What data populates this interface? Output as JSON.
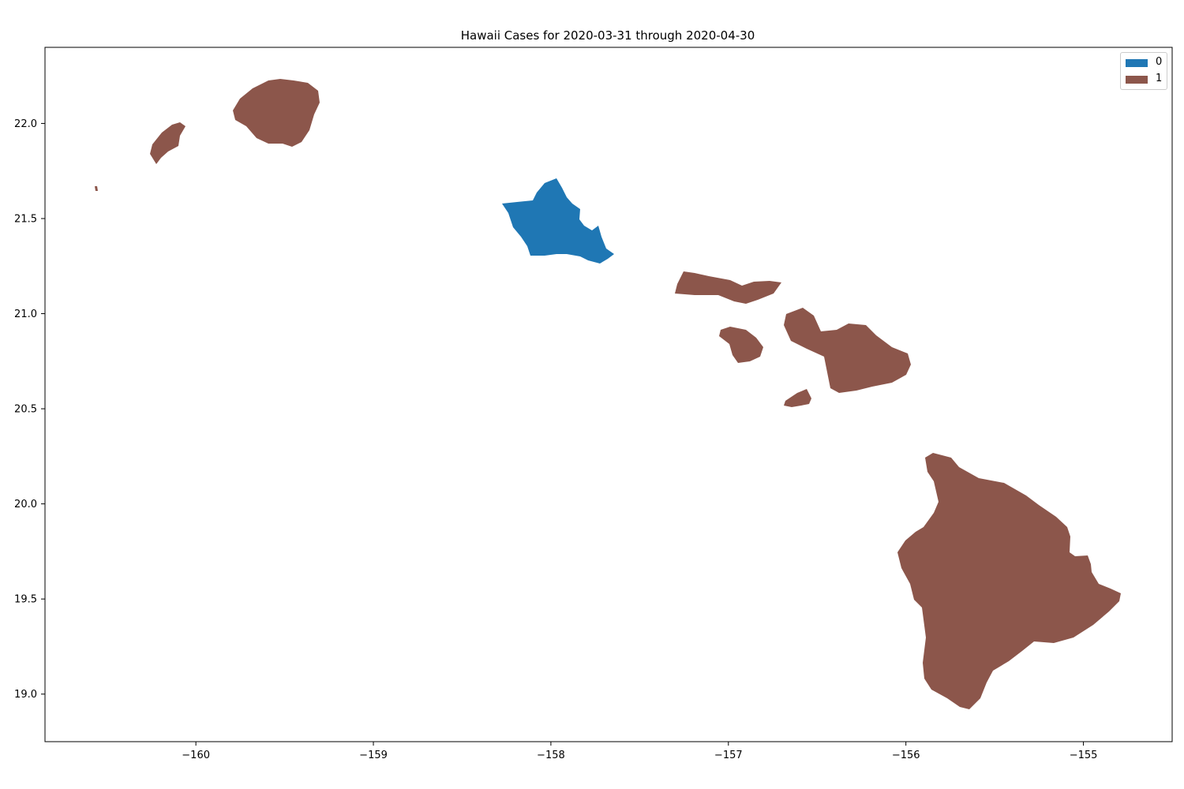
{
  "chart_data": {
    "type": "choropleth",
    "title": "Hawaii Cases for 2020-03-31 through 2020-04-30",
    "xlabel": "",
    "ylabel": "",
    "xlim": [
      -160.85,
      -154.5
    ],
    "ylim": [
      18.75,
      22.4
    ],
    "x_ticks": [
      -160,
      -159,
      -158,
      -157,
      -156,
      -155
    ],
    "y_ticks": [
      19.0,
      19.5,
      20.0,
      20.5,
      21.0,
      21.5,
      22.0
    ],
    "x_tick_labels": [
      "−160",
      "−159",
      "−158",
      "−157",
      "−156",
      "−155"
    ],
    "y_tick_labels": [
      "19.0",
      "19.5",
      "20.0",
      "20.5",
      "21.0",
      "21.5",
      "22.0"
    ],
    "grid": false,
    "legend": {
      "placement": "top-right",
      "entries": [
        {
          "label": "0",
          "color": "#1f77b4"
        },
        {
          "label": "1",
          "color": "#8c564b"
        }
      ]
    },
    "regions": [
      {
        "island": "Niihau",
        "class": "1"
      },
      {
        "island": "Kauai",
        "class": "1"
      },
      {
        "island": "Oahu",
        "class": "0"
      },
      {
        "island": "Molokai",
        "class": "1"
      },
      {
        "island": "Lanai",
        "class": "1"
      },
      {
        "island": "Maui",
        "class": "1"
      },
      {
        "island": "Kahoolawe",
        "class": "1"
      },
      {
        "island": "Hawaii",
        "class": "1"
      },
      {
        "island": "Lehua",
        "class": "1"
      }
    ]
  }
}
